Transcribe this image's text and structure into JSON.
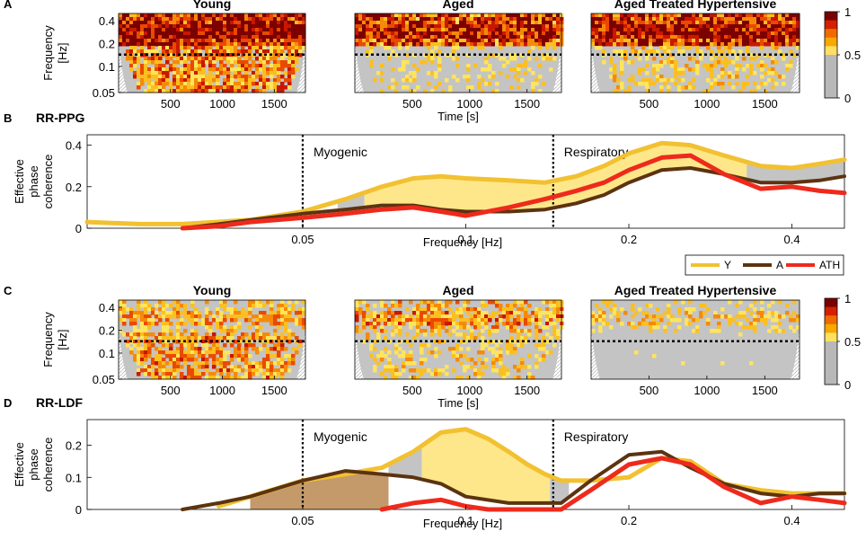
{
  "colorbar": {
    "ticks": [
      "1",
      "0.5",
      "0"
    ],
    "colors": [
      "#7a0000",
      "#d42000",
      "#f06a00",
      "#f8a800",
      "#ffe060",
      "#b8b8b8"
    ]
  },
  "series_colors": {
    "Y": "#f2c131",
    "A": "#5c3310",
    "ATH": "#ee2a1c",
    "Y_fill": "#fde78a",
    "A_fill": "#c49a6a",
    "grey_fill": "#c4c4c4"
  },
  "chart_data": [
    {
      "type": "heatmap",
      "panel": "A",
      "ylabel": "Frequency [Hz]",
      "ylabel_lines": [
        "Frequency",
        "[Hz]"
      ],
      "xlabel": "Time [s]",
      "yticks": [
        "0.4",
        "0.2",
        "0.1",
        "0.05"
      ],
      "xticks": [
        "500",
        "1000",
        "1500"
      ],
      "ylim": [
        0.05,
        0.45
      ],
      "xlim": [
        0,
        1800
      ],
      "threshold_line_hz": 0.145,
      "colorbar": {
        "min": 0,
        "max": 1,
        "ticks": [
          0,
          0.5,
          1
        ]
      },
      "subplots": [
        {
          "title": "Young",
          "high_band_intensity": 0.85,
          "low_band_intensity": 0.6
        },
        {
          "title": "Aged",
          "high_band_intensity": 0.75,
          "low_band_intensity": 0.3
        },
        {
          "title": "Aged Treated Hypertensive",
          "high_band_intensity": 0.8,
          "low_band_intensity": 0.35
        }
      ]
    },
    {
      "type": "line",
      "panel": "B",
      "title": "RR-PPG",
      "xlabel": "Frequency [Hz]",
      "ylabel": "Effective phase coherence",
      "ylabel_lines": [
        "Effective",
        "phase",
        "coherence"
      ],
      "x_scale": "log",
      "xlim": [
        0.02,
        0.5
      ],
      "ylim": [
        0,
        0.45
      ],
      "xticks": [
        "0.05",
        "0.1",
        "0.2",
        "0.4"
      ],
      "yticks": [
        "0",
        "0.2",
        "0.4"
      ],
      "regions": [
        {
          "label": "Myogenic",
          "at_hz": 0.05
        },
        {
          "label": "Respiratory",
          "at_hz": 0.145
        }
      ],
      "legend": [
        "Y",
        "A",
        "ATH"
      ],
      "series": [
        {
          "name": "Y",
          "x": [
            0.02,
            0.025,
            0.03,
            0.04,
            0.05,
            0.06,
            0.07,
            0.08,
            0.09,
            0.1,
            0.12,
            0.14,
            0.16,
            0.18,
            0.2,
            0.23,
            0.26,
            0.3,
            0.35,
            0.4,
            0.45,
            0.5
          ],
          "y": [
            0.03,
            0.02,
            0.02,
            0.04,
            0.08,
            0.14,
            0.2,
            0.24,
            0.25,
            0.24,
            0.23,
            0.22,
            0.25,
            0.3,
            0.36,
            0.41,
            0.4,
            0.35,
            0.3,
            0.29,
            0.31,
            0.33
          ]
        },
        {
          "name": "A",
          "x": [
            0.03,
            0.035,
            0.04,
            0.05,
            0.06,
            0.07,
            0.08,
            0.09,
            0.1,
            0.12,
            0.14,
            0.16,
            0.18,
            0.2,
            0.23,
            0.26,
            0.3,
            0.35,
            0.4,
            0.45,
            0.5
          ],
          "y": [
            0.0,
            0.02,
            0.04,
            0.07,
            0.09,
            0.11,
            0.11,
            0.09,
            0.08,
            0.08,
            0.09,
            0.12,
            0.16,
            0.22,
            0.28,
            0.29,
            0.26,
            0.22,
            0.22,
            0.23,
            0.25
          ]
        },
        {
          "name": "ATH",
          "x": [
            0.03,
            0.035,
            0.04,
            0.05,
            0.06,
            0.07,
            0.08,
            0.09,
            0.1,
            0.12,
            0.14,
            0.16,
            0.18,
            0.2,
            0.23,
            0.26,
            0.3,
            0.35,
            0.4,
            0.45,
            0.5
          ],
          "y": [
            0.0,
            0.01,
            0.03,
            0.05,
            0.07,
            0.09,
            0.1,
            0.08,
            0.06,
            0.1,
            0.14,
            0.18,
            0.22,
            0.28,
            0.34,
            0.35,
            0.26,
            0.19,
            0.2,
            0.18,
            0.17
          ]
        }
      ]
    },
    {
      "type": "heatmap",
      "panel": "C",
      "ylabel": "Frequency [Hz]",
      "ylabel_lines": [
        "Frequency",
        "[Hz]"
      ],
      "xlabel": "Time [s]",
      "yticks": [
        "0.4",
        "0.2",
        "0.1",
        "0.05"
      ],
      "xticks": [
        "500",
        "1000",
        "1500"
      ],
      "ylim": [
        0.05,
        0.45
      ],
      "xlim": [
        0,
        1800
      ],
      "threshold_line_hz": 0.145,
      "colorbar": {
        "min": 0,
        "max": 1,
        "ticks": [
          0,
          0.5,
          1
        ]
      },
      "subplots": [
        {
          "title": "Young",
          "high_band_intensity": 0.4,
          "low_band_intensity": 0.55
        },
        {
          "title": "Aged",
          "high_band_intensity": 0.45,
          "low_band_intensity": 0.35
        },
        {
          "title": "Aged Treated Hypertensive",
          "high_band_intensity": 0.3,
          "low_band_intensity": 0.15
        }
      ]
    },
    {
      "type": "line",
      "panel": "D",
      "title": "RR-LDF",
      "xlabel": "Frequency [Hz]",
      "ylabel": "Effective phase coherence",
      "ylabel_lines": [
        "Effective",
        "phase",
        "coherence"
      ],
      "x_scale": "log",
      "xlim": [
        0.02,
        0.5
      ],
      "ylim": [
        0,
        0.28
      ],
      "xticks": [
        "0.05",
        "0.1",
        "0.2",
        "0.4"
      ],
      "yticks": [
        "0",
        "0.1",
        "0.2"
      ],
      "regions": [
        {
          "label": "Myogenic",
          "at_hz": 0.05
        },
        {
          "label": "Respiratory",
          "at_hz": 0.145
        }
      ],
      "series": [
        {
          "name": "Y",
          "x": [
            0.035,
            0.04,
            0.05,
            0.06,
            0.07,
            0.08,
            0.09,
            0.1,
            0.11,
            0.12,
            0.13,
            0.14,
            0.15,
            0.17,
            0.2,
            0.23,
            0.26,
            0.3,
            0.35,
            0.4,
            0.45,
            0.5
          ],
          "y": [
            0.01,
            0.04,
            0.09,
            0.11,
            0.13,
            0.18,
            0.24,
            0.25,
            0.22,
            0.18,
            0.14,
            0.11,
            0.09,
            0.09,
            0.1,
            0.16,
            0.15,
            0.08,
            0.06,
            0.05,
            0.05,
            0.05
          ]
        },
        {
          "name": "A",
          "x": [
            0.03,
            0.035,
            0.04,
            0.05,
            0.06,
            0.07,
            0.08,
            0.09,
            0.1,
            0.12,
            0.14,
            0.15,
            0.17,
            0.2,
            0.23,
            0.26,
            0.3,
            0.35,
            0.4,
            0.45,
            0.5
          ],
          "y": [
            0.0,
            0.02,
            0.04,
            0.09,
            0.12,
            0.11,
            0.1,
            0.08,
            0.04,
            0.02,
            0.02,
            0.02,
            0.09,
            0.17,
            0.18,
            0.13,
            0.08,
            0.05,
            0.04,
            0.05,
            0.05
          ]
        },
        {
          "name": "ATH",
          "x": [
            0.07,
            0.08,
            0.09,
            0.1,
            0.11,
            0.15,
            0.17,
            0.2,
            0.23,
            0.26,
            0.3,
            0.35,
            0.4,
            0.45,
            0.5
          ],
          "y": [
            0.0,
            0.02,
            0.03,
            0.01,
            0.0,
            0.0,
            0.06,
            0.14,
            0.16,
            0.14,
            0.07,
            0.02,
            0.04,
            0.03,
            0.02
          ]
        }
      ]
    }
  ]
}
